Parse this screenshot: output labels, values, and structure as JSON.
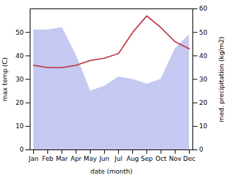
{
  "chart_data": {
    "type": "line",
    "categories": [
      "Jan",
      "Feb",
      "Mar",
      "Apr",
      "May",
      "Jun",
      "Jul",
      "Aug",
      "Sep",
      "Oct",
      "Nov",
      "Dec"
    ],
    "series": [
      {
        "type": "area",
        "color": "#c5c8f0",
        "values": [
          51,
          51,
          52,
          40,
          25,
          27,
          31,
          30,
          28,
          30,
          43,
          49
        ]
      },
      {
        "type": "line",
        "axis": "y2",
        "color": "#c04050",
        "values": [
          36,
          35,
          35,
          36,
          38,
          39,
          41,
          50,
          57,
          52,
          46,
          43
        ]
      }
    ],
    "xlabel": "date (month)",
    "ylabel": "max temp (C)",
    "y2label": "med. precipitation (kg/m2)",
    "ylim": [
      0,
      60
    ],
    "yticks": [
      0,
      10,
      20,
      30,
      40,
      50
    ],
    "y2lim": [
      0,
      60
    ],
    "y2ticks": [
      0,
      10,
      20,
      30,
      40,
      50,
      60
    ],
    "grid": false
  }
}
